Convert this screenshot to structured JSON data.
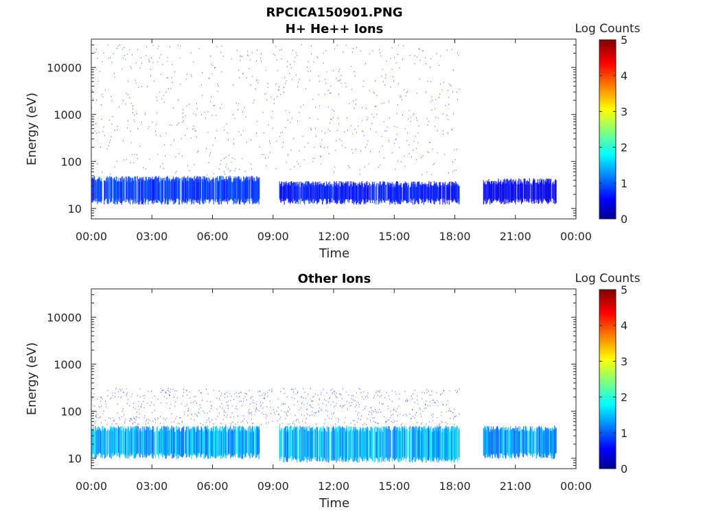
{
  "figure": {
    "filename": "RPCICA150901.PNG"
  },
  "chart_data": [
    {
      "type": "heatmap",
      "title": "H+ He++ Ions",
      "xlabel": "Time",
      "ylabel": "Energy (eV)",
      "yscale": "log",
      "xlim": [
        "00:00",
        "24:00"
      ],
      "ylim": [
        6,
        40000
      ],
      "x_ticks": [
        "00:00",
        "03:00",
        "06:00",
        "09:00",
        "12:00",
        "15:00",
        "18:00",
        "21:00",
        "00:00"
      ],
      "y_ticks": [
        "10",
        "100",
        "1000",
        "10000"
      ],
      "colorbar": {
        "label": "Log Counts",
        "range": [
          0,
          5
        ],
        "ticks": [
          "0",
          "1",
          "2",
          "3",
          "4",
          "5"
        ],
        "colormap": "jet"
      },
      "data_gaps_hours": [
        [
          8.3,
          9.3
        ],
        [
          18.2,
          19.4
        ],
        [
          23.0,
          24.0
        ]
      ],
      "features": [
        {
          "time_hours": [
            0.0,
            8.3
          ],
          "energy_ev": [
            15,
            45
          ],
          "log_counts": 1.0
        },
        {
          "time_hours": [
            9.3,
            18.2
          ],
          "energy_ev": [
            15,
            35
          ],
          "log_counts": 0.8
        },
        {
          "time_hours": [
            19.4,
            23.0
          ],
          "energy_ev": [
            15,
            40
          ],
          "log_counts": 0.6
        },
        {
          "time_hours": [
            0.0,
            18.2
          ],
          "energy_ev": [
            50,
            30000
          ],
          "log_counts": 0.3
        }
      ]
    },
    {
      "type": "heatmap",
      "title": "Other Ions",
      "xlabel": "Time",
      "ylabel": "Energy (eV)",
      "yscale": "log",
      "xlim": [
        "00:00",
        "24:00"
      ],
      "ylim": [
        6,
        40000
      ],
      "x_ticks": [
        "00:00",
        "03:00",
        "06:00",
        "09:00",
        "12:00",
        "15:00",
        "18:00",
        "21:00",
        "00:00"
      ],
      "y_ticks": [
        "10",
        "100",
        "1000",
        "10000"
      ],
      "colorbar": {
        "label": "Log Counts",
        "range": [
          0,
          5
        ],
        "ticks": [
          "0",
          "1",
          "2",
          "3",
          "4",
          "5"
        ],
        "colormap": "jet"
      },
      "data_gaps_hours": [
        [
          8.3,
          9.3
        ],
        [
          18.2,
          19.4
        ],
        [
          23.0,
          24.0
        ]
      ],
      "features": [
        {
          "time_hours": [
            0.0,
            8.3
          ],
          "energy_ev": [
            12,
            45
          ],
          "log_counts": 1.6
        },
        {
          "time_hours": [
            9.3,
            18.2
          ],
          "energy_ev": [
            10,
            45
          ],
          "log_counts": 1.7
        },
        {
          "time_hours": [
            19.4,
            23.0
          ],
          "energy_ev": [
            12,
            45
          ],
          "log_counts": 1.5
        },
        {
          "time_hours": [
            0.0,
            18.2
          ],
          "energy_ev": [
            50,
            300
          ],
          "log_counts": 0.4
        }
      ]
    }
  ]
}
